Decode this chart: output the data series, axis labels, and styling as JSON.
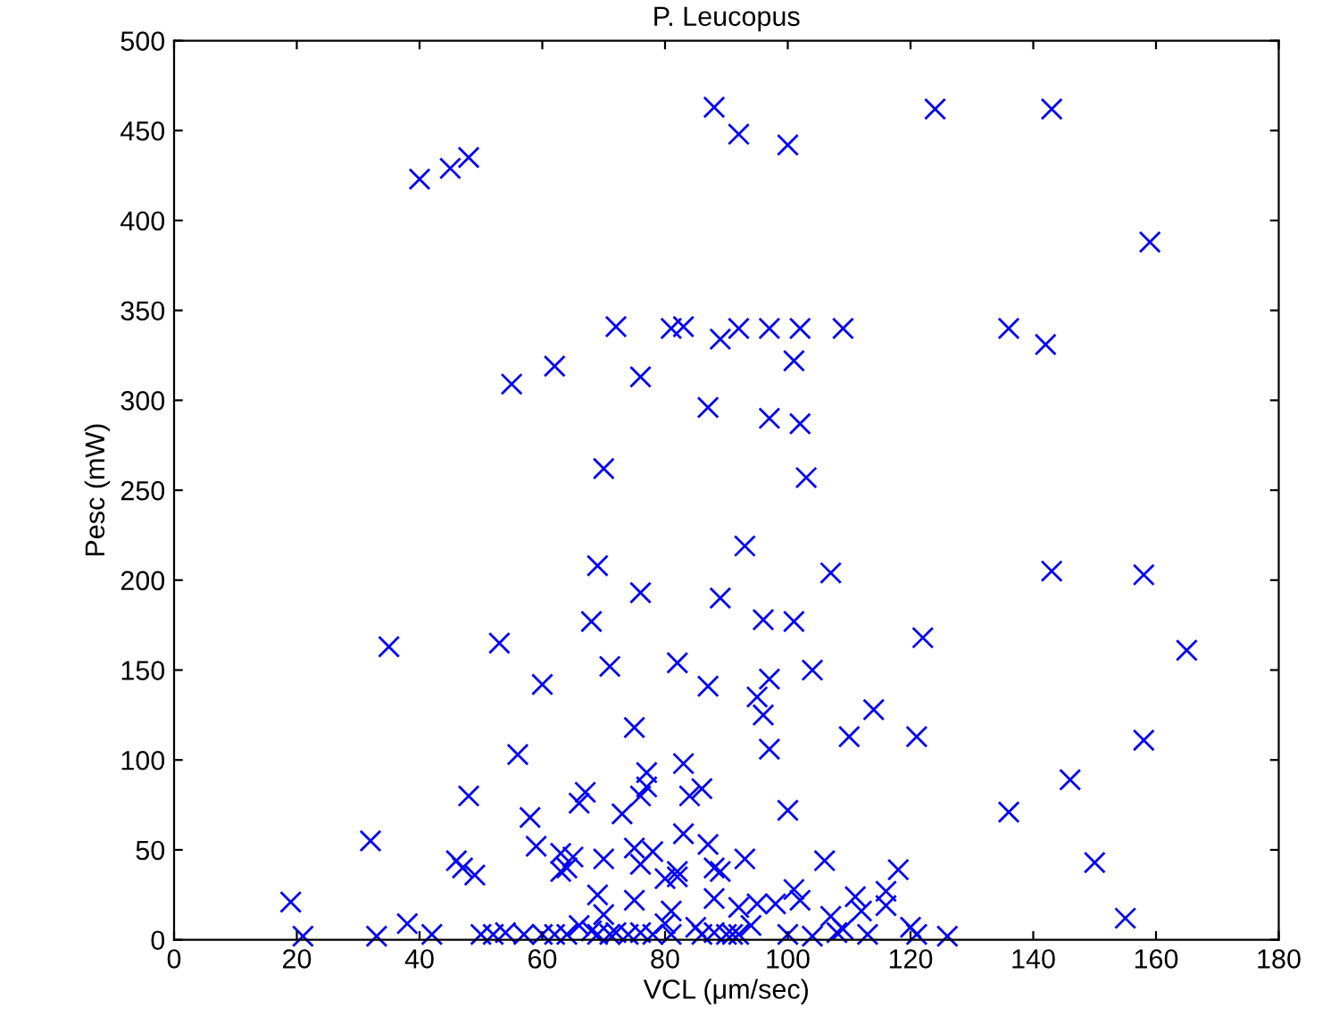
{
  "chart_data": {
    "type": "scatter",
    "title": "P. Leucopus",
    "xlabel": "VCL (μm/sec)",
    "ylabel": "Pesc (mW)",
    "xlim": [
      0,
      180
    ],
    "xticks": [
      0,
      20,
      40,
      60,
      80,
      100,
      120,
      140,
      160,
      180
    ],
    "ylim": [
      0,
      500
    ],
    "yticks": [
      0,
      50,
      100,
      150,
      200,
      250,
      300,
      350,
      400,
      450,
      500
    ],
    "grid": false,
    "legend": false,
    "marker": "cross",
    "series": [
      {
        "color": "#0000ff",
        "x": [
          40,
          45,
          48,
          88,
          92,
          100,
          124,
          143,
          159,
          72,
          81,
          83,
          89,
          92,
          97,
          102,
          109,
          136,
          142,
          55,
          62,
          76,
          87,
          97,
          101,
          102,
          103,
          70,
          93,
          35,
          53,
          60,
          56,
          68,
          69,
          71,
          76,
          82,
          87,
          89,
          96,
          101,
          104,
          107,
          122,
          143,
          158,
          165,
          95,
          96,
          97,
          97,
          110,
          114,
          121,
          158,
          146,
          136,
          100,
          150,
          155,
          75,
          19,
          21,
          32,
          33,
          38,
          42,
          48,
          46,
          47,
          49,
          58,
          59,
          63,
          63,
          65,
          64,
          66,
          67,
          70,
          71,
          73,
          75,
          75,
          76,
          77,
          77,
          76,
          78,
          81,
          82,
          83,
          83,
          84,
          86,
          87,
          88,
          88,
          89,
          93,
          92,
          95,
          98,
          101,
          102,
          106,
          107,
          109,
          111,
          112,
          116,
          116,
          118,
          120,
          121,
          126,
          50,
          52,
          54,
          57,
          60,
          62,
          64,
          66,
          68,
          69,
          70,
          72,
          74,
          76,
          78,
          80,
          81,
          85,
          86,
          88,
          90,
          92,
          100,
          104,
          108,
          113,
          69,
          80,
          82,
          91,
          94
        ],
        "values": [
          423,
          429,
          435,
          463,
          448,
          442,
          462,
          462,
          388,
          341,
          340,
          341,
          334,
          340,
          340,
          340,
          340,
          340,
          331,
          309,
          319,
          313,
          296,
          290,
          322,
          287,
          257,
          262,
          219,
          163,
          165,
          142,
          103,
          177,
          208,
          152,
          193,
          154,
          141,
          190,
          178,
          177,
          150,
          204,
          168,
          205,
          203,
          161,
          135,
          125,
          145,
          106,
          113,
          128,
          113,
          111,
          89,
          71,
          72,
          43,
          12,
          118,
          21,
          2,
          55,
          2,
          9,
          3,
          80,
          44,
          40,
          36,
          68,
          52,
          48,
          38,
          46,
          40,
          76,
          82,
          45,
          3,
          70,
          51,
          22,
          80,
          85,
          93,
          42,
          49,
          16,
          38,
          59,
          98,
          80,
          84,
          53,
          40,
          23,
          38,
          45,
          18,
          20,
          20,
          28,
          22,
          44,
          13,
          6,
          24,
          16,
          19,
          27,
          39,
          7,
          3,
          2,
          3,
          3,
          4,
          3,
          3,
          3,
          3,
          8,
          5,
          3,
          14,
          4,
          3,
          4,
          3,
          9,
          3,
          7,
          3,
          4,
          3,
          3,
          3,
          2,
          4,
          3,
          25,
          34,
          35,
          3,
          8
        ]
      }
    ]
  }
}
